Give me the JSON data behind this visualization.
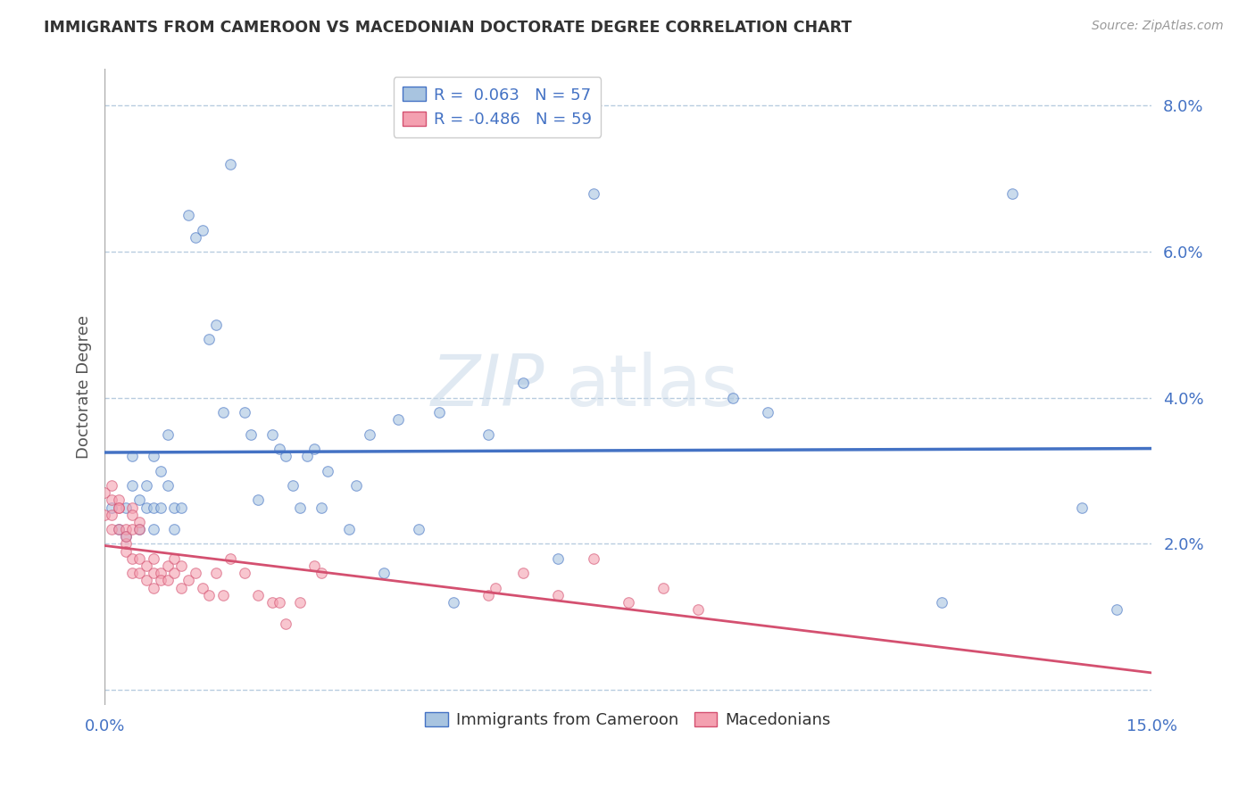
{
  "title": "IMMIGRANTS FROM CAMEROON VS MACEDONIAN DOCTORATE DEGREE CORRELATION CHART",
  "source": "Source: ZipAtlas.com",
  "ylabel": "Doctorate Degree",
  "xlim": [
    0.0,
    0.15
  ],
  "ylim": [
    -0.002,
    0.085
  ],
  "x_ticks": [
    0.0,
    0.03,
    0.06,
    0.09,
    0.12,
    0.15
  ],
  "x_tick_labels": [
    "0.0%",
    "",
    "",
    "",
    "",
    "15.0%"
  ],
  "y_ticks": [
    0.0,
    0.02,
    0.04,
    0.06,
    0.08
  ],
  "y_tick_labels": [
    "",
    "2.0%",
    "4.0%",
    "6.0%",
    "8.0%"
  ],
  "legend_label1": "Immigrants from Cameroon",
  "legend_label2": "Macedonians",
  "r1": 0.063,
  "n1": 57,
  "r2": -0.486,
  "n2": 59,
  "color_blue": "#a8c4e0",
  "color_pink": "#f4a0b0",
  "line_color_blue": "#4472c4",
  "line_color_pink": "#d45070",
  "text_color": "#4472c4",
  "background_color": "#ffffff",
  "grid_color": "#b8cce0",
  "scatter_alpha": 0.6,
  "scatter_size": 70,
  "blue_x": [
    0.001,
    0.002,
    0.003,
    0.003,
    0.004,
    0.004,
    0.005,
    0.005,
    0.006,
    0.006,
    0.007,
    0.007,
    0.007,
    0.008,
    0.008,
    0.009,
    0.009,
    0.01,
    0.01,
    0.011,
    0.012,
    0.013,
    0.014,
    0.015,
    0.016,
    0.017,
    0.018,
    0.02,
    0.021,
    0.022,
    0.024,
    0.025,
    0.026,
    0.027,
    0.028,
    0.029,
    0.03,
    0.031,
    0.032,
    0.035,
    0.036,
    0.038,
    0.04,
    0.042,
    0.045,
    0.048,
    0.05,
    0.055,
    0.06,
    0.065,
    0.07,
    0.09,
    0.095,
    0.12,
    0.13,
    0.14,
    0.145
  ],
  "blue_y": [
    0.025,
    0.022,
    0.025,
    0.021,
    0.028,
    0.032,
    0.026,
    0.022,
    0.025,
    0.028,
    0.025,
    0.022,
    0.032,
    0.03,
    0.025,
    0.035,
    0.028,
    0.025,
    0.022,
    0.025,
    0.065,
    0.062,
    0.063,
    0.048,
    0.05,
    0.038,
    0.072,
    0.038,
    0.035,
    0.026,
    0.035,
    0.033,
    0.032,
    0.028,
    0.025,
    0.032,
    0.033,
    0.025,
    0.03,
    0.022,
    0.028,
    0.035,
    0.016,
    0.037,
    0.022,
    0.038,
    0.012,
    0.035,
    0.042,
    0.018,
    0.068,
    0.04,
    0.038,
    0.012,
    0.068,
    0.025,
    0.011
  ],
  "pink_x": [
    0.0,
    0.0,
    0.001,
    0.001,
    0.001,
    0.001,
    0.002,
    0.002,
    0.002,
    0.002,
    0.003,
    0.003,
    0.003,
    0.003,
    0.004,
    0.004,
    0.004,
    0.004,
    0.004,
    0.005,
    0.005,
    0.005,
    0.005,
    0.006,
    0.006,
    0.007,
    0.007,
    0.007,
    0.008,
    0.008,
    0.009,
    0.009,
    0.01,
    0.01,
    0.011,
    0.011,
    0.012,
    0.013,
    0.014,
    0.015,
    0.016,
    0.017,
    0.018,
    0.02,
    0.022,
    0.024,
    0.025,
    0.026,
    0.028,
    0.03,
    0.031,
    0.055,
    0.056,
    0.06,
    0.065,
    0.07,
    0.075,
    0.08,
    0.085
  ],
  "pink_y": [
    0.027,
    0.024,
    0.026,
    0.024,
    0.028,
    0.022,
    0.025,
    0.022,
    0.026,
    0.025,
    0.02,
    0.022,
    0.021,
    0.019,
    0.016,
    0.018,
    0.025,
    0.024,
    0.022,
    0.016,
    0.018,
    0.023,
    0.022,
    0.015,
    0.017,
    0.016,
    0.018,
    0.014,
    0.016,
    0.015,
    0.017,
    0.015,
    0.016,
    0.018,
    0.014,
    0.017,
    0.015,
    0.016,
    0.014,
    0.013,
    0.016,
    0.013,
    0.018,
    0.016,
    0.013,
    0.012,
    0.012,
    0.009,
    0.012,
    0.017,
    0.016,
    0.013,
    0.014,
    0.016,
    0.013,
    0.018,
    0.012,
    0.014,
    0.011
  ]
}
